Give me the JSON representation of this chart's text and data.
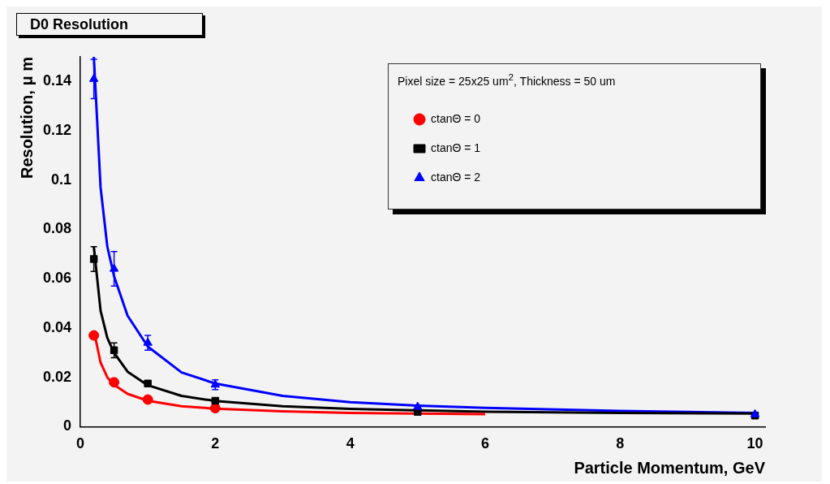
{
  "chart_data": {
    "type": "scatter",
    "title": "D0 Resolution",
    "xlabel": "Particle Momentum, GeV",
    "ylabel": "Resolution, μ m",
    "legend_title": "Pixel size = 25x25 um$^{2}$, Thickness = 50 um",
    "legend": "top right",
    "grid": false,
    "xlim": [
      0,
      10.15
    ],
    "xticks": [
      0,
      2,
      4,
      6,
      8,
      10
    ],
    "ylim": [
      0,
      0.15
    ],
    "yticks": [
      0,
      0.02,
      0.04,
      0.06,
      0.08,
      0.1,
      0.12,
      0.14
    ],
    "series": [
      {
        "name": "ctanΘ = 0",
        "color": "#ff0000",
        "marker": "circle",
        "x": [
          0.2,
          0.5,
          1,
          2
        ],
        "values": [
          0.037,
          0.018,
          0.011,
          0.0075
        ]
      },
      {
        "name": "ctanΘ = 1",
        "color": "#000000",
        "marker": "square",
        "x": [
          0.2,
          0.5,
          1,
          2,
          5,
          10
        ],
        "values": [
          0.068,
          0.031,
          0.0175,
          0.0105,
          0.006,
          0.0045
        ],
        "errors": [
          0.005,
          0.003,
          null,
          null,
          null,
          null
        ]
      },
      {
        "name": "ctanΘ = 2",
        "color": "#0000ff",
        "marker": "triangle",
        "x": [
          0.2,
          0.5,
          1,
          2,
          5,
          10
        ],
        "values": [
          0.141,
          0.064,
          0.034,
          0.017,
          0.008,
          0.005
        ],
        "errors": [
          0.008,
          0.007,
          0.003,
          0.002,
          null,
          null
        ]
      },
      {
        "type": "line",
        "color": "#ff0000",
        "marker": "none",
        "x": [
          0.2,
          0.3,
          0.4,
          0.5,
          0.7,
          1,
          1.5,
          2,
          3,
          4,
          5,
          6
        ],
        "values": [
          0.039,
          0.026,
          0.02,
          0.017,
          0.0133,
          0.0105,
          0.0083,
          0.0073,
          0.0062,
          0.0056,
          0.0053,
          0.0051
        ]
      },
      {
        "type": "line",
        "color": "#000000",
        "marker": "none",
        "x": [
          0.2,
          0.3,
          0.4,
          0.5,
          0.7,
          1,
          1.5,
          2,
          3,
          4,
          5,
          6,
          8,
          10
        ],
        "values": [
          0.073,
          0.047,
          0.036,
          0.03,
          0.0223,
          0.0168,
          0.0125,
          0.0104,
          0.0083,
          0.0072,
          0.0066,
          0.0061,
          0.0056,
          0.0053
        ]
      },
      {
        "type": "line",
        "color": "#0000ff",
        "marker": "none",
        "x": [
          0.2,
          0.3,
          0.4,
          0.5,
          0.7,
          1,
          1.5,
          2,
          3,
          4,
          5,
          6,
          8,
          10
        ],
        "values": [
          0.15,
          0.097,
          0.073,
          0.061,
          0.045,
          0.0325,
          0.022,
          0.0175,
          0.0125,
          0.0099,
          0.0085,
          0.0076,
          0.0064,
          0.0056
        ]
      }
    ]
  }
}
